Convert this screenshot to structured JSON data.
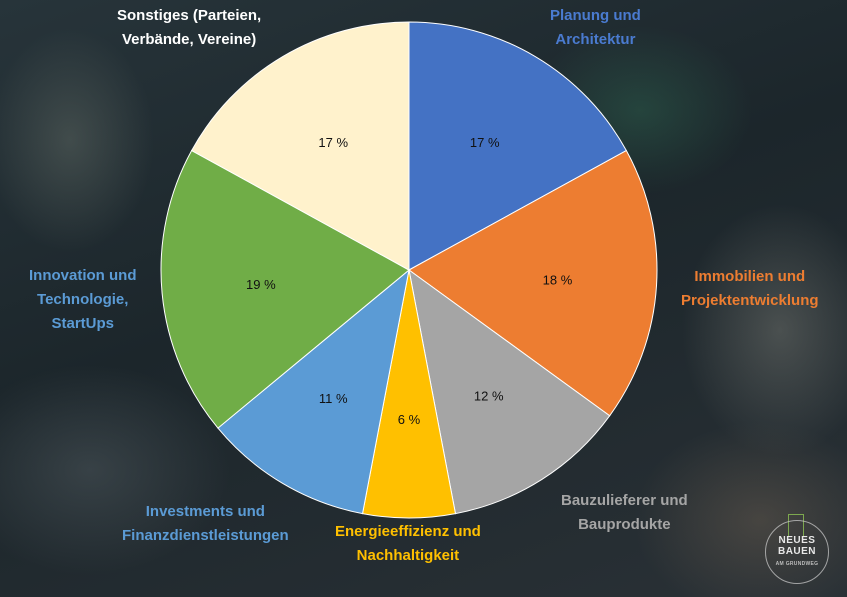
{
  "chart_data": {
    "type": "pie",
    "start": "12 o'clock, clockwise",
    "slices": [
      {
        "label": "Planung und\nArchitektur",
        "value": 17,
        "value_label": "17 %",
        "color": "#4472c4",
        "label_color": "#4a7bd0"
      },
      {
        "label": "Immobilien und\nProjektentwicklung",
        "value": 18,
        "value_label": "18 %",
        "color": "#ed7d31",
        "label_color": "#ed7d31"
      },
      {
        "label": "Bauzulieferer und\nBauprodukte",
        "value": 12,
        "value_label": "12 %",
        "color": "#a5a5a5",
        "label_color": "#a5a5a5"
      },
      {
        "label": "Energieeffizienz und\nNachhaltigkeit",
        "value": 6,
        "value_label": "6 %",
        "color": "#ffc000",
        "label_color": "#ffc000"
      },
      {
        "label": "Investments und\nFinanzdienstleistungen",
        "value": 11,
        "value_label": "11 %",
        "color": "#5b9bd5",
        "label_color": "#5b9bd5"
      },
      {
        "label": "Innovation und\nTechnologie,\nStartUps",
        "value": 19,
        "value_label": "19 %",
        "color": "#70ad47",
        "label_color": "#5b9bd5"
      },
      {
        "label": "Sonstiges (Parteien,\nVerbände, Vereine)",
        "value": 17,
        "value_label": "17 %",
        "color": "#fff2cc",
        "label_color": "#ffffff"
      }
    ]
  },
  "logo": {
    "line1": "NEUES",
    "line2": "BAUEN",
    "line3": "AM GRUNDWEG"
  }
}
